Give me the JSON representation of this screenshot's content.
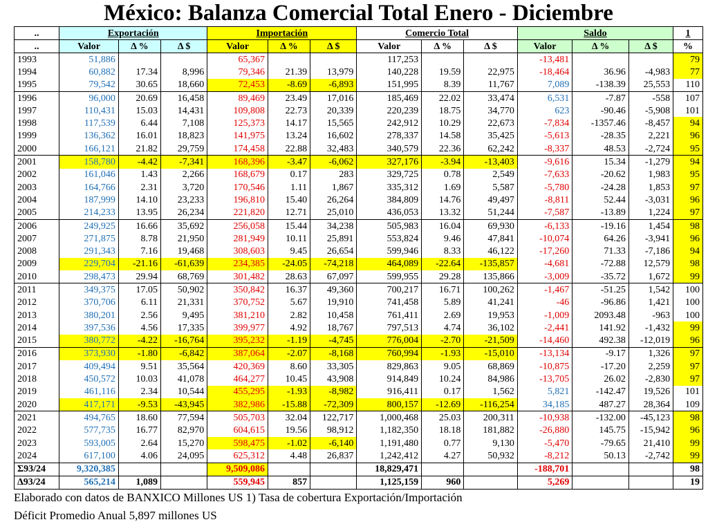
{
  "title": "México: Balanza Comercial Total Enero - Diciembre",
  "headers": {
    "group": [
      "..",
      "Exportación",
      "Importación",
      "Comercio Total",
      "Saldo",
      "1"
    ],
    "sub": [
      "..",
      "Valor",
      "Δ %",
      "Δ $",
      "Valor",
      "Δ %",
      "Δ $",
      "Valor",
      "Δ %",
      "Δ $",
      "Valor",
      "Δ %",
      "Δ $",
      "%"
    ]
  },
  "rows": [
    {
      "year": "1993",
      "e": "51,886",
      "ep": "",
      "ed": "",
      "i": "65,367",
      "ip": "",
      "id": "",
      "c": "117,253",
      "cp": "",
      "cd": "",
      "s": "-13,481",
      "sp": "",
      "sd": "",
      "t": "79",
      "hl": [],
      "thl": true
    },
    {
      "year": "1994",
      "e": "60,882",
      "ep": "17.34",
      "ed": "8,996",
      "i": "79,346",
      "ip": "21.39",
      "id": "13,979",
      "c": "140,228",
      "cp": "19.59",
      "cd": "22,975",
      "s": "-18,464",
      "sp": "36.96",
      "sd": "-4,983",
      "t": "77",
      "hl": [],
      "thl": true
    },
    {
      "year": "1995",
      "e": "79,542",
      "ep": "30.65",
      "ed": "18,660",
      "i": "72,453",
      "ip": "-8.69",
      "id": "-6,893",
      "c": "151,995",
      "cp": "8.39",
      "cd": "11,767",
      "s": "7,089",
      "sp": "-138.39",
      "sd": "25,553",
      "t": "110",
      "hl": [
        "i"
      ],
      "thl": false
    },
    {
      "year": "1996",
      "e": "96,000",
      "ep": "20.69",
      "ed": "16,458",
      "i": "89,469",
      "ip": "23.49",
      "id": "17,016",
      "c": "185,469",
      "cp": "22.02",
      "cd": "33,474",
      "s": "6,531",
      "sp": "-7.87",
      "sd": "-558",
      "t": "107",
      "hl": [],
      "thl": false
    },
    {
      "year": "1997",
      "e": "110,431",
      "ep": "15.03",
      "ed": "14,431",
      "i": "109,808",
      "ip": "22.73",
      "id": "20,339",
      "c": "220,239",
      "cp": "18.75",
      "cd": "34,770",
      "s": "623",
      "sp": "-90.46",
      "sd": "-5,908",
      "t": "101",
      "hl": [],
      "thl": false
    },
    {
      "year": "1998",
      "e": "117,539",
      "ep": "6.44",
      "ed": "7,108",
      "i": "125,373",
      "ip": "14.17",
      "id": "15,565",
      "c": "242,912",
      "cp": "10.29",
      "cd": "22,673",
      "s": "-7,834",
      "sp": "-1357.46",
      "sd": "-8,457",
      "t": "94",
      "hl": [],
      "thl": true
    },
    {
      "year": "1999",
      "e": "136,362",
      "ep": "16.01",
      "ed": "18,823",
      "i": "141,975",
      "ip": "13.24",
      "id": "16,602",
      "c": "278,337",
      "cp": "14.58",
      "cd": "35,425",
      "s": "-5,613",
      "sp": "-28.35",
      "sd": "2,221",
      "t": "96",
      "hl": [],
      "thl": true
    },
    {
      "year": "2000",
      "e": "166,121",
      "ep": "21.82",
      "ed": "29,759",
      "i": "174,458",
      "ip": "22.88",
      "id": "32,483",
      "c": "340,579",
      "cp": "22.36",
      "cd": "62,242",
      "s": "-8,337",
      "sp": "48.53",
      "sd": "-2,724",
      "t": "95",
      "hl": [],
      "thl": true
    },
    {
      "year": "2001",
      "e": "158,780",
      "ep": "-4.42",
      "ed": "-7,341",
      "i": "168,396",
      "ip": "-3.47",
      "id": "-6,062",
      "c": "327,176",
      "cp": "-3.94",
      "cd": "-13,403",
      "s": "-9,616",
      "sp": "15.34",
      "sd": "-1,279",
      "t": "94",
      "hl": [
        "e",
        "i",
        "c"
      ],
      "thl": true
    },
    {
      "year": "2002",
      "e": "161,046",
      "ep": "1.43",
      "ed": "2,266",
      "i": "168,679",
      "ip": "0.17",
      "id": "283",
      "c": "329,725",
      "cp": "0.78",
      "cd": "2,549",
      "s": "-7,633",
      "sp": "-20.62",
      "sd": "1,983",
      "t": "95",
      "hl": [],
      "thl": true
    },
    {
      "year": "2003",
      "e": "164,766",
      "ep": "2.31",
      "ed": "3,720",
      "i": "170,546",
      "ip": "1.11",
      "id": "1,867",
      "c": "335,312",
      "cp": "1.69",
      "cd": "5,587",
      "s": "-5,780",
      "sp": "-24.28",
      "sd": "1,853",
      "t": "97",
      "hl": [],
      "thl": true
    },
    {
      "year": "2004",
      "e": "187,999",
      "ep": "14.10",
      "ed": "23,233",
      "i": "196,810",
      "ip": "15.40",
      "id": "26,264",
      "c": "384,809",
      "cp": "14.76",
      "cd": "49,497",
      "s": "-8,811",
      "sp": "52.44",
      "sd": "-3,031",
      "t": "96",
      "hl": [],
      "thl": true
    },
    {
      "year": "2005",
      "e": "214,233",
      "ep": "13.95",
      "ed": "26,234",
      "i": "221,820",
      "ip": "12.71",
      "id": "25,010",
      "c": "436,053",
      "cp": "13.32",
      "cd": "51,244",
      "s": "-7,587",
      "sp": "-13.89",
      "sd": "1,224",
      "t": "97",
      "hl": [],
      "thl": true
    },
    {
      "year": "2006",
      "e": "249,925",
      "ep": "16.66",
      "ed": "35,692",
      "i": "256,058",
      "ip": "15.44",
      "id": "34,238",
      "c": "505,983",
      "cp": "16.04",
      "cd": "69,930",
      "s": "-6,133",
      "sp": "-19.16",
      "sd": "1,454",
      "t": "98",
      "hl": [],
      "thl": true
    },
    {
      "year": "2007",
      "e": "271,875",
      "ep": "8.78",
      "ed": "21,950",
      "i": "281,949",
      "ip": "10.11",
      "id": "25,891",
      "c": "553,824",
      "cp": "9.46",
      "cd": "47,841",
      "s": "-10,074",
      "sp": "64.26",
      "sd": "-3,941",
      "t": "96",
      "hl": [],
      "thl": true
    },
    {
      "year": "2008",
      "e": "291,343",
      "ep": "7.16",
      "ed": "19,468",
      "i": "308,603",
      "ip": "9.45",
      "id": "26,654",
      "c": "599,946",
      "cp": "8.33",
      "cd": "46,122",
      "s": "-17,260",
      "sp": "71.33",
      "sd": "-7,186",
      "t": "94",
      "hl": [],
      "thl": true
    },
    {
      "year": "2009",
      "e": "229,704",
      "ep": "-21.16",
      "ed": "-61,639",
      "i": "234,385",
      "ip": "-24.05",
      "id": "-74,218",
      "c": "464,089",
      "cp": "-22.64",
      "cd": "-135,857",
      "s": "-4,681",
      "sp": "-72.88",
      "sd": "12,579",
      "t": "98",
      "hl": [
        "e",
        "i",
        "c"
      ],
      "thl": true
    },
    {
      "year": "2010",
      "e": "298,473",
      "ep": "29.94",
      "ed": "68,769",
      "i": "301,482",
      "ip": "28.63",
      "id": "67,097",
      "c": "599,955",
      "cp": "29.28",
      "cd": "135,866",
      "s": "-3,009",
      "sp": "-35.72",
      "sd": "1,672",
      "t": "99",
      "hl": [],
      "thl": true
    },
    {
      "year": "2011",
      "e": "349,375",
      "ep": "17.05",
      "ed": "50,902",
      "i": "350,842",
      "ip": "16.37",
      "id": "49,360",
      "c": "700,217",
      "cp": "16.71",
      "cd": "100,262",
      "s": "-1,467",
      "sp": "-51.25",
      "sd": "1,542",
      "t": "100",
      "hl": [],
      "thl": false
    },
    {
      "year": "2012",
      "e": "370,706",
      "ep": "6.11",
      "ed": "21,331",
      "i": "370,752",
      "ip": "5.67",
      "id": "19,910",
      "c": "741,458",
      "cp": "5.89",
      "cd": "41,241",
      "s": "-46",
      "sp": "-96.86",
      "sd": "1,421",
      "t": "100",
      "hl": [],
      "thl": false
    },
    {
      "year": "2013",
      "e": "380,201",
      "ep": "2.56",
      "ed": "9,495",
      "i": "381,210",
      "ip": "2.82",
      "id": "10,458",
      "c": "761,411",
      "cp": "2.69",
      "cd": "19,953",
      "s": "-1,009",
      "sp": "2093.48",
      "sd": "-963",
      "t": "100",
      "hl": [],
      "thl": false
    },
    {
      "year": "2014",
      "e": "397,536",
      "ep": "4.56",
      "ed": "17,335",
      "i": "399,977",
      "ip": "4.92",
      "id": "18,767",
      "c": "797,513",
      "cp": "4.74",
      "cd": "36,102",
      "s": "-2,441",
      "sp": "141.92",
      "sd": "-1,432",
      "t": "99",
      "hl": [],
      "thl": true
    },
    {
      "year": "2015",
      "e": "380,772",
      "ep": "-4.22",
      "ed": "-16,764",
      "i": "395,232",
      "ip": "-1.19",
      "id": "-4,745",
      "c": "776,004",
      "cp": "-2.70",
      "cd": "-21,509",
      "s": "-14,460",
      "sp": "492.38",
      "sd": "-12,019",
      "t": "96",
      "hl": [
        "e",
        "i",
        "c"
      ],
      "thl": true
    },
    {
      "year": "2016",
      "e": "373,930",
      "ep": "-1.80",
      "ed": "-6,842",
      "i": "387,064",
      "ip": "-2.07",
      "id": "-8,168",
      "c": "760,994",
      "cp": "-1.93",
      "cd": "-15,010",
      "s": "-13,134",
      "sp": "-9.17",
      "sd": "1,326",
      "t": "97",
      "hl": [
        "e",
        "i",
        "c"
      ],
      "thl": true
    },
    {
      "year": "2017",
      "e": "409,494",
      "ep": "9.51",
      "ed": "35,564",
      "i": "420,369",
      "ip": "8.60",
      "id": "33,305",
      "c": "829,863",
      "cp": "9.05",
      "cd": "68,869",
      "s": "-10,875",
      "sp": "-17.20",
      "sd": "2,259",
      "t": "97",
      "hl": [],
      "thl": true
    },
    {
      "year": "2018",
      "e": "450,572",
      "ep": "10.03",
      "ed": "41,078",
      "i": "464,277",
      "ip": "10.45",
      "id": "43,908",
      "c": "914,849",
      "cp": "10.24",
      "cd": "84,986",
      "s": "-13,705",
      "sp": "26.02",
      "sd": "-2,830",
      "t": "97",
      "hl": [],
      "thl": true
    },
    {
      "year": "2019",
      "e": "461,116",
      "ep": "2.34",
      "ed": "10,544",
      "i": "455,295",
      "ip": "-1.93",
      "id": "-8,982",
      "c": "916,411",
      "cp": "0.17",
      "cd": "1,562",
      "s": "5,821",
      "sp": "-142.47",
      "sd": "19,526",
      "t": "101",
      "hl": [
        "i"
      ],
      "thl": false
    },
    {
      "year": "2020",
      "e": "417,171",
      "ep": "-9.53",
      "ed": "-43,945",
      "i": "382,986",
      "ip": "-15.88",
      "id": "-72,309",
      "c": "800,157",
      "cp": "-12.69",
      "cd": "-116,254",
      "s": "34,185",
      "sp": "487.27",
      "sd": "28,364",
      "t": "109",
      "hl": [
        "e",
        "i",
        "c"
      ],
      "thl": false
    },
    {
      "year": "2021",
      "e": "494,765",
      "ep": "18.60",
      "ed": "77,594",
      "i": "505,703",
      "ip": "32.04",
      "id": "122,717",
      "c": "1,000,468",
      "cp": "25.03",
      "cd": "200,311",
      "s": "-10,938",
      "sp": "-132.00",
      "sd": "-45,123",
      "t": "98",
      "hl": [],
      "thl": true
    },
    {
      "year": "2022",
      "e": "577,735",
      "ep": "16.77",
      "ed": "82,970",
      "i": "604,615",
      "ip": "19.56",
      "id": "98,912",
      "c": "1,182,350",
      "cp": "18.18",
      "cd": "181,882",
      "s": "-26,880",
      "sp": "145.75",
      "sd": "-15,942",
      "t": "96",
      "hl": [],
      "thl": true
    },
    {
      "year": "2023",
      "e": "593,005",
      "ep": "2.64",
      "ed": "15,270",
      "i": "598,475",
      "ip": "-1.02",
      "id": "-6,140",
      "c": "1,191,480",
      "cp": "0.77",
      "cd": "9,130",
      "s": "-5,470",
      "sp": "-79.65",
      "sd": "21,410",
      "t": "99",
      "hl": [
        "i"
      ],
      "thl": true
    },
    {
      "year": "2024",
      "e": "617,100",
      "ep": "4.06",
      "ed": "24,095",
      "i": "625,312",
      "ip": "4.48",
      "id": "26,837",
      "c": "1,242,412",
      "cp": "4.27",
      "cd": "50,932",
      "s": "-8,212",
      "sp": "50.13",
      "sd": "-2,742",
      "t": "99",
      "hl": [],
      "thl": true
    }
  ],
  "totals": [
    {
      "label": "Σ93/24",
      "e": "9,320,385",
      "ep": "",
      "i": "9,509,086",
      "ip": "",
      "c": "18,829,471",
      "cp": "",
      "s": "-188,701",
      "t": "98"
    },
    {
      "label": "Δ93/24",
      "e": "565,214",
      "ep": "1,089",
      "i": "559,945",
      "ip": "857",
      "c": "1,125,159",
      "cp": "960",
      "s": "5,269",
      "t": "19"
    }
  ],
  "footer": {
    "line1": "Elaborado con datos de BANXICO   Millones US   1) Tasa de cobertura Exportación/Importación",
    "line2": "Déficit Promedio Anual 5,897 millones US"
  },
  "colors": {
    "export_blue": "#1f6fb5",
    "import_red": "#e00000",
    "highlight": "#ffff00",
    "export_header": "#ccffff",
    "saldo_header": "#ccffcc"
  }
}
